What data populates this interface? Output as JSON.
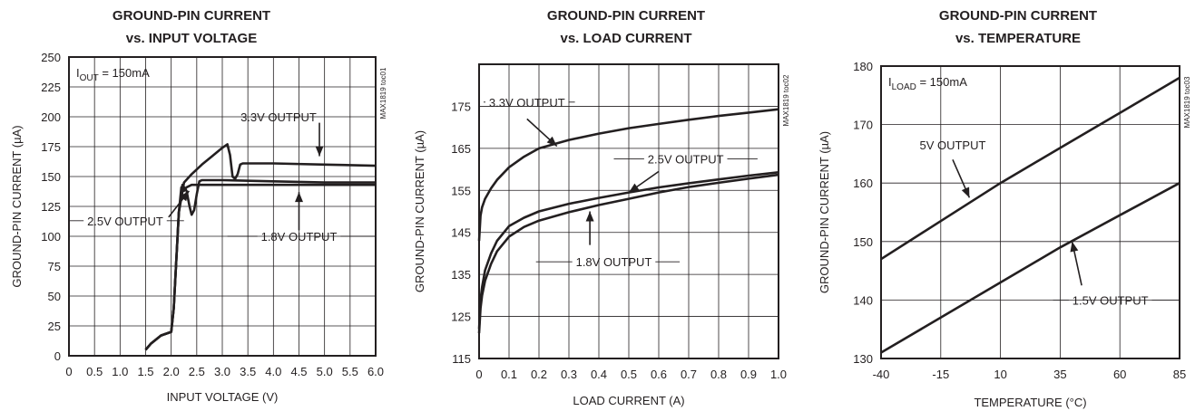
{
  "colors": {
    "line": "#231f20",
    "grid": "#231f20",
    "background": "#ffffff"
  },
  "chart_data": [
    {
      "type": "line",
      "title_lines": [
        "GROUND-PIN CURRENT",
        "vs. INPUT VOLTAGE"
      ],
      "xlabel": "INPUT VOLTAGE (V)",
      "ylabel": "GROUND-PIN CURRENT (µA)",
      "xlim": [
        0,
        6
      ],
      "ylim": [
        0,
        250
      ],
      "xticks": [
        0,
        0.5,
        1,
        1.5,
        2,
        2.5,
        3,
        3.5,
        4,
        4.5,
        5,
        5.5,
        6
      ],
      "xtick_labels": [
        "0",
        "0.5",
        "1.0",
        "1.5",
        "2.0",
        "2.5",
        "3.0",
        "3.5",
        "4.0",
        "4.5",
        "5.0",
        "5.5",
        "6.0"
      ],
      "yticks": [
        0,
        25,
        50,
        75,
        100,
        125,
        150,
        175,
        200,
        225,
        250
      ],
      "ytick_labels": [
        "0",
        "25",
        "50",
        "75",
        "100",
        "125",
        "150",
        "175",
        "200",
        "225",
        "250"
      ],
      "grid": true,
      "condition": {
        "main": "I",
        "sub": "OUT",
        "rest": " = 150mA"
      },
      "code_label": "MAX1819 toc01",
      "series": [
        {
          "name": "3.3V OUTPUT",
          "x": [
            1.5,
            1.6,
            1.8,
            2.0,
            2.05,
            2.15,
            2.25,
            2.4,
            2.6,
            2.8,
            3.0,
            3.1,
            3.15,
            3.2,
            3.25,
            3.3,
            3.35,
            3.4,
            3.5,
            4.0,
            5.0,
            6.0
          ],
          "y": [
            5,
            10,
            17,
            20,
            40,
            120,
            145,
            152,
            160,
            167,
            174,
            177,
            168,
            150,
            148,
            152,
            160,
            161,
            161,
            161,
            160,
            159
          ]
        },
        {
          "name": "2.5V OUTPUT",
          "x": [
            1.5,
            1.6,
            1.8,
            2.0,
            2.05,
            2.15,
            2.22,
            2.3,
            2.36,
            2.4,
            2.45,
            2.5,
            2.55,
            2.6,
            2.7,
            3.0,
            4.0,
            5.0,
            6.0
          ],
          "y": [
            5,
            10,
            17,
            20,
            40,
            120,
            143,
            138,
            125,
            118,
            122,
            135,
            146,
            147,
            147,
            147,
            146,
            145,
            145
          ]
        },
        {
          "name": "1.8V OUTPUT",
          "x": [
            1.5,
            1.6,
            1.8,
            2.0,
            2.05,
            2.15,
            2.2,
            2.25,
            2.3,
            2.4,
            2.5,
            3.0,
            4.0,
            5.0,
            6.0
          ],
          "y": [
            5,
            10,
            17,
            20,
            40,
            120,
            141,
            138,
            141,
            143,
            143,
            143,
            143,
            143,
            143
          ]
        }
      ],
      "annotations": [
        {
          "text": "3.3V OUTPUT",
          "line_x": [
            3.3,
            4.75
          ],
          "line_y": 200,
          "text_x": 4.1,
          "arrow_from": [
            4.9,
            195
          ],
          "arrow_to": [
            4.9,
            167
          ]
        },
        {
          "text": "2.5V OUTPUT",
          "line_x": [
            0.0,
            2.25
          ],
          "line_y": 113,
          "text_x": 1.1,
          "arrow_from": [
            1.95,
            116
          ],
          "arrow_to": [
            2.35,
            138
          ]
        },
        {
          "text": "1.8V OUTPUT",
          "line_x": [
            3.1,
            6.0
          ],
          "line_y": 100,
          "text_x": 4.5,
          "arrow_from": [
            4.5,
            105
          ],
          "arrow_to": [
            4.5,
            137
          ]
        }
      ]
    },
    {
      "type": "line",
      "title_lines": [
        "GROUND-PIN CURRENT",
        "vs. LOAD CURRENT"
      ],
      "xlabel": "LOAD CURRENT (A)",
      "ylabel": "GROUND-PIN CURRENT (µA)",
      "xlim": [
        0,
        1
      ],
      "ylim": [
        115,
        185
      ],
      "xticks": [
        0,
        0.1,
        0.2,
        0.3,
        0.4,
        0.5,
        0.6,
        0.7,
        0.8,
        0.9,
        1.0
      ],
      "xtick_labels": [
        "0",
        "0.1",
        "0.2",
        "0.3",
        "0.4",
        "0.5",
        "0.6",
        "0.7",
        "0.8",
        "0.9",
        "1.0"
      ],
      "yticks": [
        115,
        125,
        135,
        145,
        155,
        165,
        175
      ],
      "ytick_labels": [
        "115",
        "125",
        "135",
        "145",
        "155",
        "165",
        "175"
      ],
      "grid": true,
      "code_label": "MAX1819 toc02",
      "series": [
        {
          "name": "3.3V OUTPUT",
          "x": [
            0,
            0.005,
            0.01,
            0.02,
            0.04,
            0.06,
            0.1,
            0.15,
            0.2,
            0.3,
            0.4,
            0.5,
            0.6,
            0.7,
            0.8,
            0.9,
            1.0
          ],
          "y": [
            143,
            149,
            151,
            153,
            155.5,
            157.5,
            160.5,
            163,
            165,
            167,
            168.5,
            169.8,
            170.8,
            171.8,
            172.7,
            173.5,
            174.3
          ]
        },
        {
          "name": "2.5V OUTPUT",
          "x": [
            0,
            0.005,
            0.01,
            0.02,
            0.04,
            0.06,
            0.1,
            0.15,
            0.2,
            0.3,
            0.4,
            0.5,
            0.6,
            0.7,
            0.8,
            0.9,
            1.0
          ],
          "y": [
            122,
            129,
            132,
            136,
            140,
            143,
            146.5,
            148.5,
            150,
            151.8,
            153.2,
            154.5,
            155.7,
            156.7,
            157.6,
            158.5,
            159.3
          ]
        },
        {
          "name": "1.8V OUTPUT",
          "x": [
            0,
            0.005,
            0.01,
            0.02,
            0.04,
            0.06,
            0.1,
            0.15,
            0.2,
            0.3,
            0.4,
            0.5,
            0.6,
            0.7,
            0.8,
            0.9,
            1.0
          ],
          "y": [
            121,
            127,
            130,
            133.5,
            137.5,
            140.5,
            144,
            146.3,
            147.8,
            149.8,
            151.5,
            153,
            154.5,
            155.8,
            156.8,
            157.8,
            158.7
          ]
        }
      ],
      "annotations": [
        {
          "text": "3.3V OUTPUT",
          "line_x": [
            0.015,
            0.32
          ],
          "line_y": 176,
          "text_x": 0.16,
          "arrow_from": [
            0.16,
            172
          ],
          "arrow_to": [
            0.26,
            165.5
          ]
        },
        {
          "text": "2.5V OUTPUT",
          "line_x": [
            0.45,
            0.93
          ],
          "line_y": 162.5,
          "text_x": 0.69,
          "arrow_from": [
            0.6,
            159.5
          ],
          "arrow_to": [
            0.5,
            154.5
          ]
        },
        {
          "text": "1.8V OUTPUT",
          "line_x": [
            0.19,
            0.67
          ],
          "line_y": 138,
          "text_x": 0.45,
          "arrow_from": [
            0.37,
            142
          ],
          "arrow_to": [
            0.37,
            150
          ]
        }
      ]
    },
    {
      "type": "line",
      "title_lines": [
        "GROUND-PIN CURRENT",
        "vs. TEMPERATURE"
      ],
      "xlabel": "TEMPERATURE (°C)",
      "ylabel": "GROUND-PIN CURRENT (µA)",
      "xlim": [
        -40,
        85
      ],
      "ylim": [
        130,
        180
      ],
      "xticks": [
        -40,
        -15,
        10,
        35,
        60,
        85
      ],
      "xtick_labels": [
        "-40",
        "-15",
        "10",
        "35",
        "60",
        "85"
      ],
      "yticks": [
        130,
        140,
        150,
        160,
        170,
        180
      ],
      "ytick_labels": [
        "130",
        "140",
        "150",
        "160",
        "170",
        "180"
      ],
      "grid": true,
      "condition": {
        "main": "I",
        "sub": "LOAD",
        "rest": " = 150mA"
      },
      "code_label": "MAX1819 toc03",
      "series": [
        {
          "name": "5V OUTPUT",
          "x": [
            -40,
            -15,
            10,
            35,
            60,
            85
          ],
          "y": [
            147,
            153.5,
            160,
            166,
            172,
            178
          ]
        },
        {
          "name": "1.5V OUTPUT",
          "x": [
            -40,
            -15,
            10,
            35,
            60,
            85
          ],
          "y": [
            131,
            137,
            143,
            149,
            154.5,
            160
          ]
        }
      ],
      "annotations": [
        {
          "text": "5V OUTPUT",
          "line_x": null,
          "line_y": 166.5,
          "text_x": -10,
          "arrow_from": [
            -10,
            164
          ],
          "arrow_to": [
            -3,
            157.5
          ]
        },
        {
          "text": "1.5V OUTPUT",
          "line_x": [
            32,
            85
          ],
          "line_y": 140,
          "text_x": 56,
          "arrow_from": [
            44,
            142.5
          ],
          "arrow_to": [
            40,
            150
          ]
        }
      ]
    }
  ]
}
